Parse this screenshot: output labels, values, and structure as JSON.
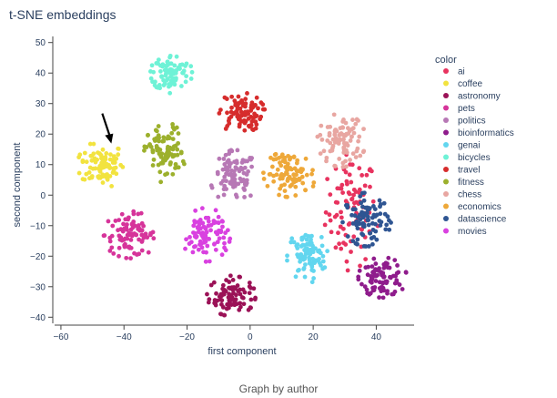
{
  "chart_data": {
    "type": "scatter",
    "title": "t-SNE embeddings",
    "xlabel": "first component",
    "ylabel": "second component",
    "xlim": [
      -62,
      52
    ],
    "ylim": [
      -42,
      52
    ],
    "xticks": [
      -60,
      -40,
      -20,
      0,
      20,
      40
    ],
    "yticks": [
      -40,
      -30,
      -20,
      -10,
      0,
      10,
      20,
      30,
      40,
      50
    ],
    "grid": false,
    "legend_title": "color",
    "legend_position": "right",
    "caption": "Graph by author",
    "annotation": {
      "type": "arrow",
      "target": [
        -44,
        16
      ]
    },
    "series": [
      {
        "name": "ai",
        "color": "#e8335f",
        "center": [
          32,
          -5
        ],
        "spread": [
          4,
          9
        ]
      },
      {
        "name": "coffee",
        "color": "#f2e33f",
        "center": [
          -47,
          10
        ],
        "spread": [
          3.5,
          3.5
        ]
      },
      {
        "name": "astronomy",
        "color": "#9b1257",
        "center": [
          -6,
          -33
        ],
        "spread": [
          3.5,
          3
        ]
      },
      {
        "name": "pets",
        "color": "#d6349a",
        "center": [
          -38,
          -13
        ],
        "spread": [
          4,
          3.5
        ]
      },
      {
        "name": "politics",
        "color": "#b778b5",
        "center": [
          -5,
          6
        ],
        "spread": [
          3.5,
          4
        ]
      },
      {
        "name": "bioinformatics",
        "color": "#8f1c8c",
        "center": [
          42,
          -27
        ],
        "spread": [
          3.5,
          3
        ]
      },
      {
        "name": "genai",
        "color": "#62d6ef",
        "center": [
          18,
          -20
        ],
        "spread": [
          3,
          4
        ]
      },
      {
        "name": "bicycles",
        "color": "#6ef2d6",
        "center": [
          -25,
          40
        ],
        "spread": [
          3,
          3
        ]
      },
      {
        "name": "travel",
        "color": "#d62c2c",
        "center": [
          -3,
          27
        ],
        "spread": [
          3.5,
          3
        ]
      },
      {
        "name": "fitness",
        "color": "#9cb02c",
        "center": [
          -27,
          14
        ],
        "spread": [
          3,
          4.5
        ]
      },
      {
        "name": "chess",
        "color": "#e8a6a1",
        "center": [
          29,
          18
        ],
        "spread": [
          3.5,
          4
        ]
      },
      {
        "name": "economics",
        "color": "#eea839",
        "center": [
          13,
          7
        ],
        "spread": [
          4,
          3.5
        ]
      },
      {
        "name": "datascience",
        "color": "#2f5592",
        "center": [
          37,
          -8
        ],
        "spread": [
          3.5,
          4
        ]
      },
      {
        "name": "movies",
        "color": "#d941e0",
        "center": [
          -14,
          -13
        ],
        "spread": [
          3.5,
          4
        ]
      }
    ]
  }
}
